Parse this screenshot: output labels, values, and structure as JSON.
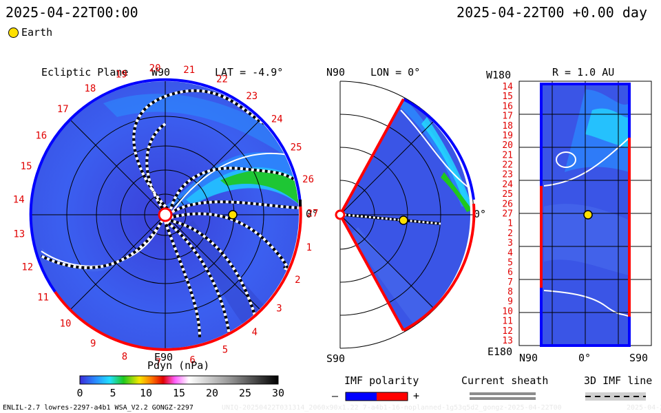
{
  "header": {
    "timestamp_left": "2025-04-22T00:00",
    "timestamp_right": "2025-04-22T00 +0.00 day",
    "legend_earth": "Earth"
  },
  "ecliptic_panel": {
    "title": "Ecliptic Plane",
    "lat_label": "LAT = -4.9°",
    "label_top": "W90",
    "label_bottom": "E90",
    "label_right": "0°",
    "longitude_ticks": [
      "20",
      "21",
      "22",
      "23",
      "24",
      "25",
      "26",
      "27",
      "1",
      "2",
      "3",
      "4",
      "5",
      "6",
      "7",
      "8",
      "9",
      "10",
      "11",
      "12",
      "13",
      "14",
      "15",
      "16",
      "17",
      "18",
      "19"
    ]
  },
  "meridional_panel": {
    "lon_label": "LON = 0°",
    "label_top": "N90",
    "label_bottom": "S90",
    "label_right": "0°"
  },
  "radial_panel": {
    "r_label": "R = 1.0 AU",
    "label_top_left": "W180",
    "label_bottom_left": "E180",
    "x_labels": [
      "N90",
      "0°",
      "S90"
    ],
    "y_ticks": [
      "14",
      "15",
      "16",
      "17",
      "18",
      "19",
      "20",
      "21",
      "22",
      "23",
      "24",
      "25",
      "26",
      "27",
      "1",
      "2",
      "3",
      "4",
      "5",
      "6",
      "7",
      "8",
      "9",
      "10",
      "11",
      "12",
      "13"
    ]
  },
  "colorbar": {
    "title": "Pdyn (nPa)",
    "ticks": [
      "0",
      "5",
      "10",
      "15",
      "20",
      "25",
      "30"
    ],
    "colors": [
      "#3a2bd8",
      "#2a8cff",
      "#22e0ff",
      "#1ec81e",
      "#f6e600",
      "#ff7a00",
      "#e00000",
      "#ff60ff",
      "#ffffff",
      "#9a9a9a",
      "#000000"
    ]
  },
  "imf_polarity": {
    "title": "IMF polarity",
    "minus": "–",
    "plus": "+",
    "negative_color": "#0000ff",
    "positive_color": "#ff0000"
  },
  "current_sheath": {
    "title": "Current sheath"
  },
  "imf_line": {
    "title": "3D IMF line"
  },
  "footer": {
    "model_info": "ENLIL-2.7 lowres-2297-a4b1 WSA_V2.2 GONGZ-2297",
    "run_info": "UNIQ-20250422T031314_2060x90x1.22 7-a4b1-16-noplanned-1g53q5d2_gongz-2025-04-22T00",
    "date_info": "2025-04-22"
  }
}
